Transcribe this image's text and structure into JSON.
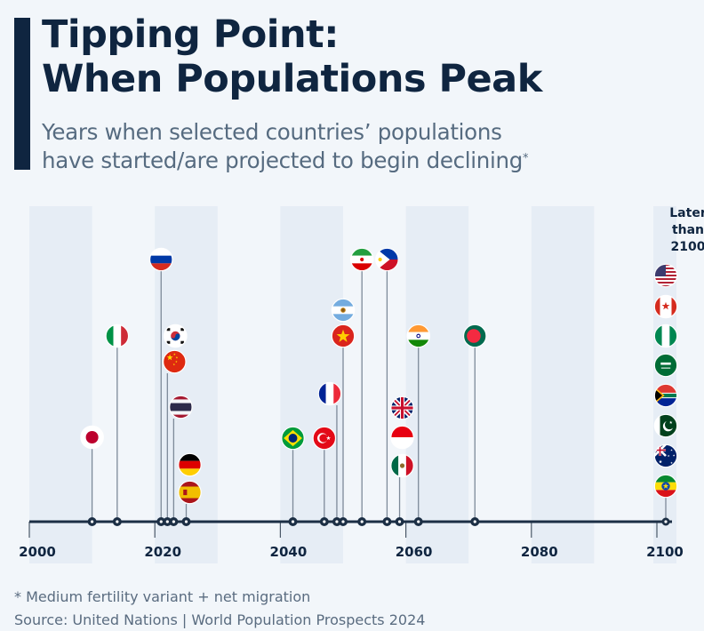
{
  "header": {
    "title_line1": "Tipping Point:",
    "title_line2": "When Populations Peak",
    "subtitle_line1": "Years when selected countries’ populations",
    "subtitle_line2": "have started/are projected to begin declining",
    "subtitle_marker": "*"
  },
  "later_label": {
    "line1": "Later",
    "line2": "than",
    "line3": "2100"
  },
  "footer": {
    "footnote": "* Medium fertility variant + net migration",
    "source": "Source: United Nations | World Population Prospects 2024"
  },
  "colors": {
    "navy": "#0f2540",
    "axis": "#1c2f45",
    "stem": "#7d8a99",
    "band": "#e6edf5",
    "background": "#f2f6fa"
  },
  "chart_data": {
    "type": "scatter",
    "title": "Tipping Point: When Populations Peak",
    "subtitle": "Years when selected countries’ populations have started/are projected to begin declining*",
    "xlabel": "",
    "ylabel": "",
    "xlim": [
      2000,
      2100
    ],
    "x_ticks": [
      2000,
      2020,
      2040,
      2060,
      2080,
      2100
    ],
    "tick_labels": [
      "2000",
      "2020",
      "2040",
      "2060",
      "2080",
      "2100"
    ],
    "grid": "alternating decade bands",
    "points": [
      {
        "country": "Japan",
        "flag": "japan",
        "year": 2010
      },
      {
        "country": "Italy",
        "flag": "italy",
        "year": 2014
      },
      {
        "country": "Russia",
        "flag": "russia",
        "year": 2021
      },
      {
        "country": "South Korea",
        "flag": "south-korea",
        "year": 2022
      },
      {
        "country": "China",
        "flag": "china",
        "year": 2022
      },
      {
        "country": "Thailand",
        "flag": "thailand",
        "year": 2023
      },
      {
        "country": "Germany",
        "flag": "germany",
        "year": 2025
      },
      {
        "country": "Spain",
        "flag": "spain",
        "year": 2025
      },
      {
        "country": "Brazil",
        "flag": "brazil",
        "year": 2042
      },
      {
        "country": "Turkey",
        "flag": "turkey",
        "year": 2047
      },
      {
        "country": "France",
        "flag": "france",
        "year": 2049
      },
      {
        "country": "Argentina",
        "flag": "argentina",
        "year": 2050
      },
      {
        "country": "Vietnam",
        "flag": "vietnam",
        "year": 2050
      },
      {
        "country": "Iran",
        "flag": "iran",
        "year": 2053
      },
      {
        "country": "Philippines",
        "flag": "philippines",
        "year": 2057
      },
      {
        "country": "United Kingdom",
        "flag": "uk",
        "year": 2059
      },
      {
        "country": "Indonesia",
        "flag": "indonesia",
        "year": 2059
      },
      {
        "country": "Mexico",
        "flag": "mexico",
        "year": 2059
      },
      {
        "country": "India",
        "flag": "india",
        "year": 2062
      },
      {
        "country": "Bangladesh",
        "flag": "bangladesh",
        "year": 2071
      }
    ],
    "later_than_2100": {
      "label": "Later than 2100",
      "countries": [
        {
          "country": "United States",
          "flag": "usa"
        },
        {
          "country": "Canada",
          "flag": "canada"
        },
        {
          "country": "Nigeria",
          "flag": "nigeria"
        },
        {
          "country": "Saudi Arabia",
          "flag": "saudi-arabia"
        },
        {
          "country": "South Africa",
          "flag": "south-africa"
        },
        {
          "country": "Pakistan",
          "flag": "pakistan"
        },
        {
          "country": "Australia",
          "flag": "australia"
        },
        {
          "country": "Ethiopia",
          "flag": "ethiopia"
        }
      ]
    },
    "footnote": "* Medium fertility variant + net migration",
    "source": "United Nations | World Population Prospects 2024"
  }
}
